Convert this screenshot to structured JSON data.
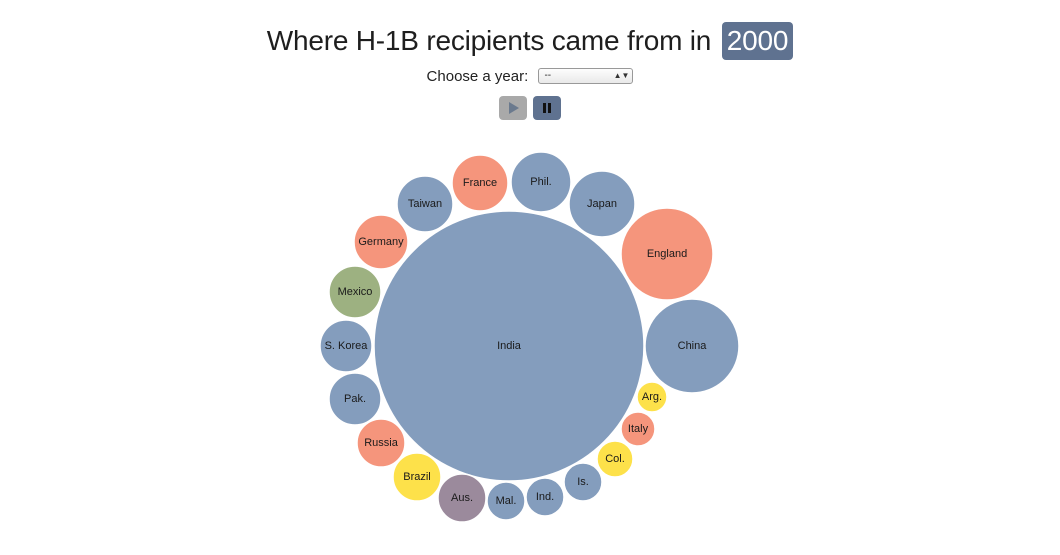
{
  "header": {
    "title_text": "Where H-1B recipients came from in",
    "year": "2000"
  },
  "controls": {
    "choose_label": "Choose a year:",
    "selected_year": "--",
    "play_icon": "play-icon",
    "pause_icon": "pause-icon"
  },
  "colors": {
    "blue": "#849dbd",
    "orange": "#f5957c",
    "green": "#9db181",
    "yellow": "#fde14a",
    "purple": "#9b8a9c",
    "accent": "#5f7290"
  },
  "chart_data": {
    "type": "bubble",
    "title": "Where H-1B recipients came from in 2000",
    "center": "India",
    "bubbles": [
      {
        "name": "India",
        "group": "blue"
      },
      {
        "name": "China",
        "group": "blue"
      },
      {
        "name": "England",
        "group": "orange"
      },
      {
        "name": "Japan",
        "group": "blue"
      },
      {
        "name": "Phil.",
        "group": "blue"
      },
      {
        "name": "France",
        "group": "orange"
      },
      {
        "name": "Taiwan",
        "group": "blue"
      },
      {
        "name": "Germany",
        "group": "orange"
      },
      {
        "name": "Mexico",
        "group": "green"
      },
      {
        "name": "S. Korea",
        "group": "blue"
      },
      {
        "name": "Pak.",
        "group": "blue"
      },
      {
        "name": "Russia",
        "group": "orange"
      },
      {
        "name": "Brazil",
        "group": "yellow"
      },
      {
        "name": "Aus.",
        "group": "purple"
      },
      {
        "name": "Mal.",
        "group": "blue"
      },
      {
        "name": "Ind.",
        "group": "blue"
      },
      {
        "name": "Is.",
        "group": "blue"
      },
      {
        "name": "Col.",
        "group": "yellow"
      },
      {
        "name": "Italy",
        "group": "orange"
      },
      {
        "name": "Arg.",
        "group": "yellow"
      }
    ]
  }
}
